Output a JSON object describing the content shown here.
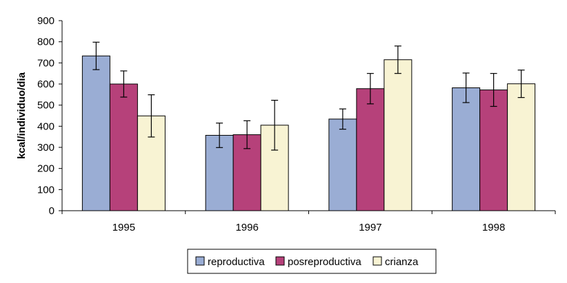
{
  "chart_data": {
    "type": "bar",
    "categories": [
      "1995",
      "1996",
      "1997",
      "1998"
    ],
    "series": [
      {
        "name": "reproductiva",
        "color": "#9aadd4",
        "values": [
          733,
          357,
          434,
          582
        ],
        "error": [
          65,
          58,
          48,
          70
        ]
      },
      {
        "name": "posreproductiva",
        "color": "#b6417a",
        "values": [
          600,
          360,
          578,
          572
        ],
        "error": [
          62,
          66,
          72,
          78
        ]
      },
      {
        "name": "crianza",
        "color": "#f8f3d3",
        "values": [
          449,
          405,
          715,
          601
        ],
        "error": [
          100,
          118,
          65,
          65
        ]
      }
    ],
    "title": "",
    "xlabel": "",
    "ylabel": "kcal/individuo/dia",
    "ylim": [
      0,
      900
    ],
    "yticks": [
      0,
      100,
      200,
      300,
      400,
      500,
      600,
      700,
      800,
      900
    ],
    "grid": false,
    "legend_position": "bottom"
  }
}
